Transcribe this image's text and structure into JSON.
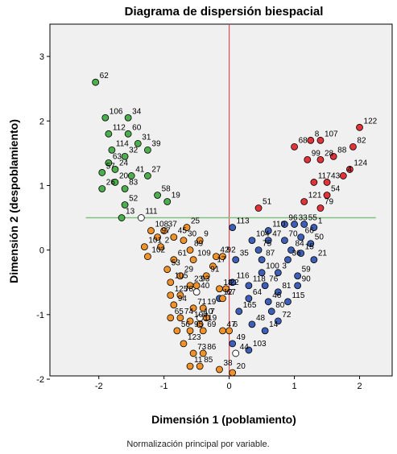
{
  "chart_data": {
    "type": "scatter",
    "title": "Diagrama de dispersión biespacial",
    "xlabel": "Dimensión 1 (poblamiento)",
    "ylabel": "Dimensión 2 (despoblamiento)",
    "footnote": "Normalización principal por variable.",
    "xlim": [
      -2.75,
      2.5
    ],
    "ylim": [
      -1.95,
      3.5
    ],
    "xticks": [
      "-2",
      "-1",
      "0",
      "1",
      "2"
    ],
    "yticks": [
      "-2",
      "-1",
      "0",
      "1",
      "2",
      "3"
    ],
    "reference_lines": {
      "vertical_x": 0,
      "horizontal_y": 0.5,
      "horizontal_x_range": [
        -2.2,
        2.25
      ]
    },
    "colors": {
      "plot_background": "#f0f0f0",
      "vertical_line": "#e0303a",
      "horizontal_line": "#7fbf7f",
      "green": "#4cae4c",
      "red": "#e2323a",
      "blue": "#3d5fb5",
      "orange": "#f0922b",
      "open": "#ffffff"
    },
    "series": [
      {
        "group": "green",
        "points": [
          {
            "label": "62",
            "x": -2.05,
            "y": 2.6
          },
          {
            "label": "106",
            "x": -1.9,
            "y": 2.05
          },
          {
            "label": "34",
            "x": -1.55,
            "y": 2.05
          },
          {
            "label": "112",
            "x": -1.85,
            "y": 1.8
          },
          {
            "label": "60",
            "x": -1.55,
            "y": 1.8
          },
          {
            "label": "31",
            "x": -1.4,
            "y": 1.65
          },
          {
            "label": "114",
            "x": -1.8,
            "y": 1.55
          },
          {
            "label": "39",
            "x": -1.25,
            "y": 1.55
          },
          {
            "label": "32",
            "x": -1.6,
            "y": 1.45
          },
          {
            "label": "63",
            "x": -1.85,
            "y": 1.35
          },
          {
            "label": "24",
            "x": -1.75,
            "y": 1.25
          },
          {
            "label": "57",
            "x": -1.95,
            "y": 1.2
          },
          {
            "label": "41",
            "x": -1.5,
            "y": 1.15
          },
          {
            "label": "27",
            "x": -1.25,
            "y": 1.15
          },
          {
            "label": "20",
            "x": -1.75,
            "y": 1.05
          },
          {
            "label": "26",
            "x": -1.95,
            "y": 0.95
          },
          {
            "label": "83",
            "x": -1.6,
            "y": 0.95
          },
          {
            "label": "58",
            "x": -1.1,
            "y": 0.85
          },
          {
            "label": "19",
            "x": -0.95,
            "y": 0.75
          },
          {
            "label": "52",
            "x": -1.6,
            "y": 0.7
          },
          {
            "label": "13",
            "x": -1.65,
            "y": 0.5
          }
        ]
      },
      {
        "group": "red",
        "points": [
          {
            "label": "122",
            "x": 2.0,
            "y": 1.9
          },
          {
            "label": "8",
            "x": 1.25,
            "y": 1.7
          },
          {
            "label": "107",
            "x": 1.4,
            "y": 1.7
          },
          {
            "label": "68",
            "x": 1.0,
            "y": 1.6
          },
          {
            "label": "82",
            "x": 1.9,
            "y": 1.6
          },
          {
            "label": "99",
            "x": 1.2,
            "y": 1.4
          },
          {
            "label": "28",
            "x": 1.4,
            "y": 1.4
          },
          {
            "label": "88",
            "x": 1.6,
            "y": 1.45
          },
          {
            "label": "124",
            "x": 1.85,
            "y": 1.25
          },
          {
            "label": "117",
            "x": 1.3,
            "y": 1.05
          },
          {
            "label": "43",
            "x": 1.5,
            "y": 1.05
          },
          {
            "label": "4",
            "x": 1.75,
            "y": 1.15
          },
          {
            "label": "54",
            "x": 1.5,
            "y": 0.85
          },
          {
            "label": "121",
            "x": 1.15,
            "y": 0.75
          },
          {
            "label": "51",
            "x": 0.45,
            "y": 0.65
          },
          {
            "label": "79",
            "x": 1.4,
            "y": 0.65
          }
        ]
      },
      {
        "group": "blue",
        "points": [
          {
            "label": "113",
            "x": 0.05,
            "y": 0.35
          },
          {
            "label": "96",
            "x": 0.85,
            "y": 0.4
          },
          {
            "label": "33",
            "x": 1.0,
            "y": 0.4
          },
          {
            "label": "55",
            "x": 1.15,
            "y": 0.4
          },
          {
            "label": "1",
            "x": 1.3,
            "y": 0.35
          },
          {
            "label": "110",
            "x": 0.6,
            "y": 0.3
          },
          {
            "label": "66",
            "x": 1.1,
            "y": 0.2
          },
          {
            "label": "104",
            "x": 0.35,
            "y": 0.15
          },
          {
            "label": "47",
            "x": 0.6,
            "y": 0.15
          },
          {
            "label": "70",
            "x": 0.85,
            "y": 0.15
          },
          {
            "label": "50",
            "x": 1.25,
            "y": 0.1
          },
          {
            "label": "75",
            "x": 0.45,
            "y": 0.0
          },
          {
            "label": "84",
            "x": 0.95,
            "y": 0.0
          },
          {
            "label": "15",
            "x": 1.1,
            "y": -0.05
          },
          {
            "label": "35",
            "x": 0.1,
            "y": -0.15
          },
          {
            "label": "87",
            "x": 0.5,
            "y": -0.15
          },
          {
            "label": "36",
            "x": 0.9,
            "y": -0.15
          },
          {
            "label": "21",
            "x": 1.3,
            "y": -0.15
          },
          {
            "label": "100",
            "x": 0.5,
            "y": -0.35
          },
          {
            "label": "3",
            "x": 0.75,
            "y": -0.35
          },
          {
            "label": "59",
            "x": 1.05,
            "y": -0.4
          },
          {
            "label": "116",
            "x": 0.05,
            "y": -0.5
          },
          {
            "label": "118",
            "x": 0.3,
            "y": -0.55
          },
          {
            "label": "76",
            "x": 0.55,
            "y": -0.55
          },
          {
            "label": "81",
            "x": 0.75,
            "y": -0.65
          },
          {
            "label": "90",
            "x": 1.05,
            "y": -0.55
          },
          {
            "label": "12",
            "x": -0.15,
            "y": -0.75
          },
          {
            "label": "64",
            "x": 0.3,
            "y": -0.75
          },
          {
            "label": "46",
            "x": 0.6,
            "y": -0.8
          },
          {
            "label": "115",
            "x": 0.9,
            "y": -0.8
          },
          {
            "label": "165",
            "x": 0.15,
            "y": -0.95
          },
          {
            "label": "80",
            "x": 0.65,
            "y": -0.95
          },
          {
            "label": "48",
            "x": 0.35,
            "y": -1.15
          },
          {
            "label": "72",
            "x": 0.75,
            "y": -1.1
          },
          {
            "label": "14",
            "x": 0.55,
            "y": -1.25
          },
          {
            "label": "49",
            "x": 0.05,
            "y": -1.45
          },
          {
            "label": "103",
            "x": 0.3,
            "y": -1.55
          }
        ]
      },
      {
        "group": "orange",
        "points": [
          {
            "label": "25",
            "x": -0.65,
            "y": 0.35
          },
          {
            "label": "108",
            "x": -1.2,
            "y": 0.3
          },
          {
            "label": "37",
            "x": -1.0,
            "y": 0.3
          },
          {
            "label": "97",
            "x": -1.1,
            "y": 0.2
          },
          {
            "label": "45",
            "x": -0.85,
            "y": 0.2
          },
          {
            "label": "30",
            "x": -0.7,
            "y": 0.15
          },
          {
            "label": "9",
            "x": -0.45,
            "y": 0.15
          },
          {
            "label": "101",
            "x": -1.3,
            "y": 0.05
          },
          {
            "label": "2",
            "x": -1.05,
            "y": 0.05
          },
          {
            "label": "89",
            "x": -0.6,
            "y": 0.0
          },
          {
            "label": "102",
            "x": -1.25,
            "y": -0.1
          },
          {
            "label": "42",
            "x": -0.2,
            "y": -0.1
          },
          {
            "label": "92",
            "x": -0.1,
            "y": -0.1
          },
          {
            "label": "61",
            "x": -0.85,
            "y": -0.15
          },
          {
            "label": "109",
            "x": -0.55,
            "y": -0.15
          },
          {
            "label": "53",
            "x": -0.95,
            "y": -0.3
          },
          {
            "label": "17",
            "x": -0.25,
            "y": -0.25
          },
          {
            "label": "29",
            "x": -0.75,
            "y": -0.4
          },
          {
            "label": "91",
            "x": -0.35,
            "y": -0.4
          },
          {
            "label": "105",
            "x": -0.9,
            "y": -0.5
          },
          {
            "label": "23",
            "x": -0.6,
            "y": -0.55
          },
          {
            "label": "93",
            "x": -0.5,
            "y": -0.55
          },
          {
            "label": "18",
            "x": -0.15,
            "y": -0.6
          },
          {
            "label": "22",
            "x": -0.05,
            "y": -0.6
          },
          {
            "label": "125",
            "x": -0.9,
            "y": -0.7
          },
          {
            "label": "78",
            "x": -0.75,
            "y": -0.7
          },
          {
            "label": "67",
            "x": -0.1,
            "y": -0.75
          },
          {
            "label": "94",
            "x": -0.85,
            "y": -0.85
          },
          {
            "label": "71",
            "x": -0.55,
            "y": -0.9
          },
          {
            "label": "19b",
            "x": -0.4,
            "y": -0.9
          },
          {
            "label": "65",
            "x": -0.9,
            "y": -1.05
          },
          {
            "label": "74",
            "x": -0.75,
            "y": -1.05
          },
          {
            "label": "7",
            "x": -0.35,
            "y": -1.05
          },
          {
            "label": "100b",
            "x": -0.6,
            "y": -1.1
          },
          {
            "label": "119",
            "x": -0.45,
            "y": -1.15
          },
          {
            "label": "56",
            "x": -0.8,
            "y": -1.25
          },
          {
            "label": "95",
            "x": -0.6,
            "y": -1.25
          },
          {
            "label": "69",
            "x": -0.4,
            "y": -1.25
          },
          {
            "label": "47b",
            "x": -0.1,
            "y": -1.25
          },
          {
            "label": "6",
            "x": 0.0,
            "y": -1.25
          },
          {
            "label": "123",
            "x": -0.7,
            "y": -1.45
          },
          {
            "label": "73",
            "x": -0.55,
            "y": -1.6
          },
          {
            "label": "86",
            "x": -0.4,
            "y": -1.6
          },
          {
            "label": "11",
            "x": -0.6,
            "y": -1.8
          },
          {
            "label": "85",
            "x": -0.45,
            "y": -1.8
          },
          {
            "label": "38",
            "x": -0.15,
            "y": -1.85
          },
          {
            "label": "20b",
            "x": 0.05,
            "y": -1.9
          }
        ]
      },
      {
        "group": "open",
        "points": [
          {
            "label": "111",
            "x": -1.35,
            "y": 0.5
          },
          {
            "label": "40",
            "x": -0.5,
            "y": -0.65
          },
          {
            "label": "44",
            "x": 0.1,
            "y": -1.6
          },
          {
            "label": "10",
            "x": -0.45,
            "y": -1.05
          }
        ]
      }
    ]
  }
}
